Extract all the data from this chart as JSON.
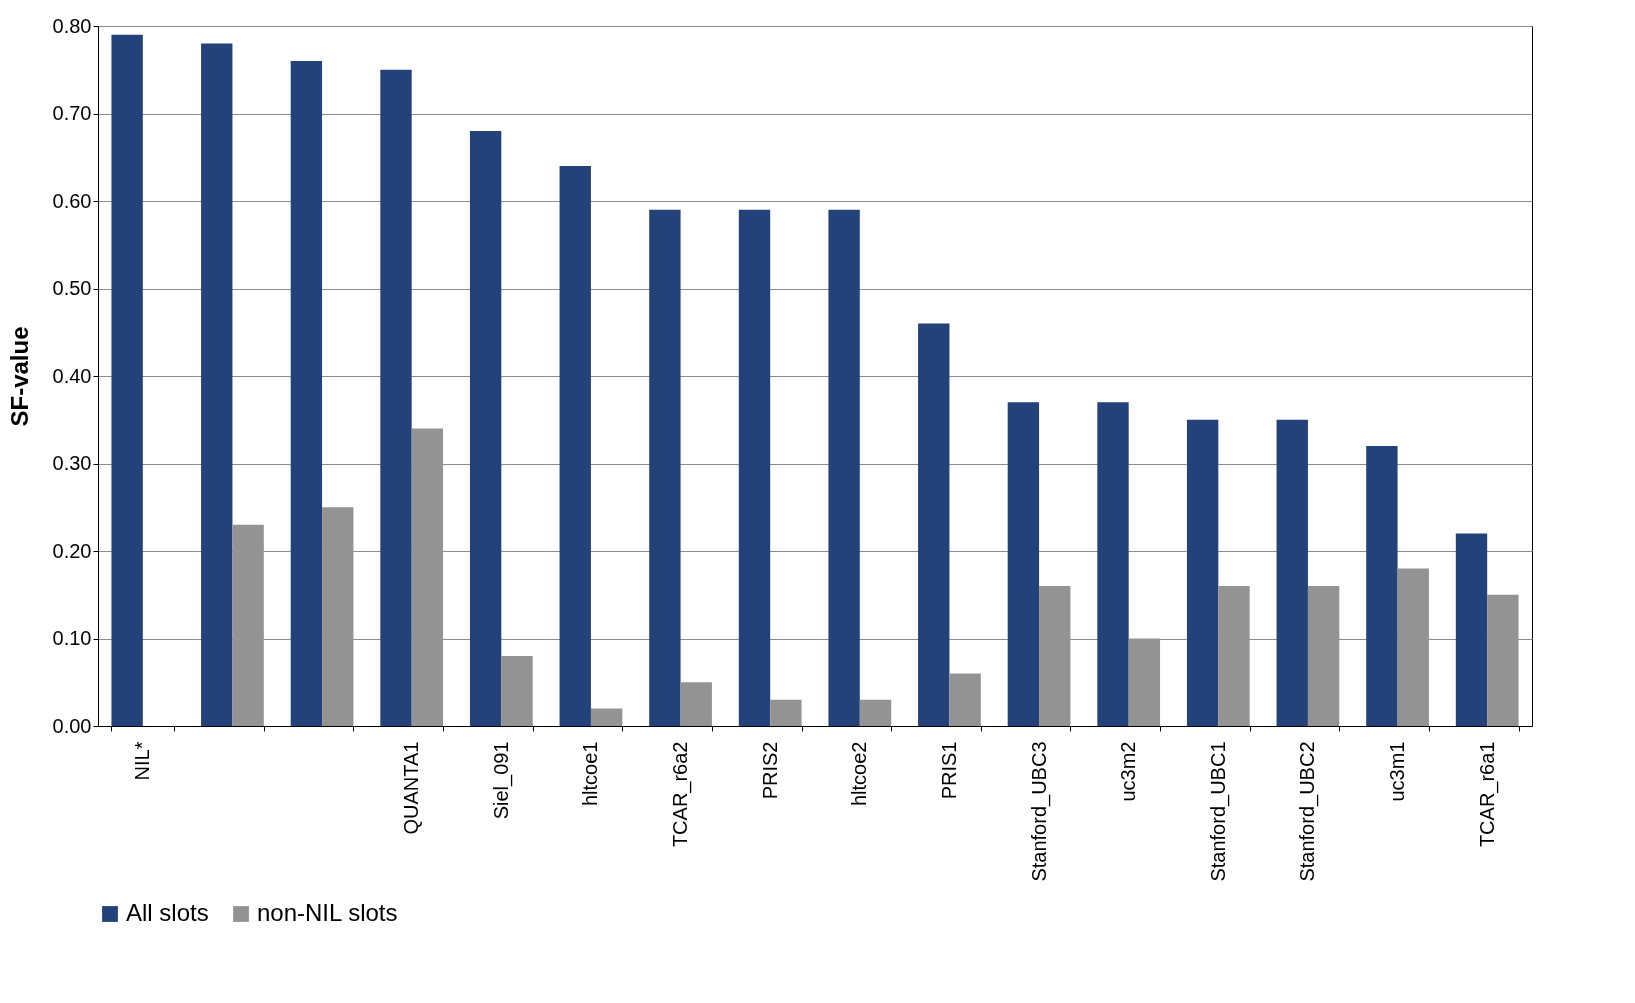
{
  "chart_data": {
    "type": "bar",
    "ylabel": "SF-value",
    "categories": [
      "NIL*",
      null,
      null,
      "QUANTA1",
      "Siel_091",
      "hltcoe1",
      "TCAR_r6a2",
      "PRIS2",
      "hltcoe2",
      "PRIS1",
      "Stanford_UBC3",
      "uc3m2",
      "Stanford_UBC1",
      "Stanford_UBC2",
      "uc3m1",
      "TCAR_r6a1"
    ],
    "series": [
      {
        "name": "All slots",
        "color": "#23427a",
        "values": [
          0.79,
          0.78,
          0.76,
          0.75,
          0.68,
          0.64,
          0.59,
          0.59,
          0.59,
          0.46,
          0.37,
          0.37,
          0.35,
          0.35,
          0.32,
          0.22
        ]
      },
      {
        "name": "non-NIL slots",
        "color": "#939393",
        "values": [
          null,
          0.23,
          0.25,
          0.34,
          0.08,
          0.02,
          0.05,
          0.03,
          0.03,
          0.06,
          0.16,
          0.1,
          0.16,
          0.16,
          0.18,
          0.15
        ]
      }
    ],
    "ylim": [
      0,
      0.8
    ],
    "yticks": [
      {
        "value": 0,
        "label": "0.00"
      },
      {
        "value": 0.1,
        "label": "0.10"
      },
      {
        "value": 0.2,
        "label": "0.20"
      },
      {
        "value": 0.3,
        "label": "0.30"
      },
      {
        "value": 0.4,
        "label": "0.40"
      },
      {
        "value": 0.5,
        "label": "0.50"
      },
      {
        "value": 0.6,
        "label": "0.60"
      },
      {
        "value": 0.7,
        "label": "0.70"
      },
      {
        "value": 0.8,
        "label": "0.80"
      }
    ],
    "grid": "y",
    "legend": "bottom"
  }
}
